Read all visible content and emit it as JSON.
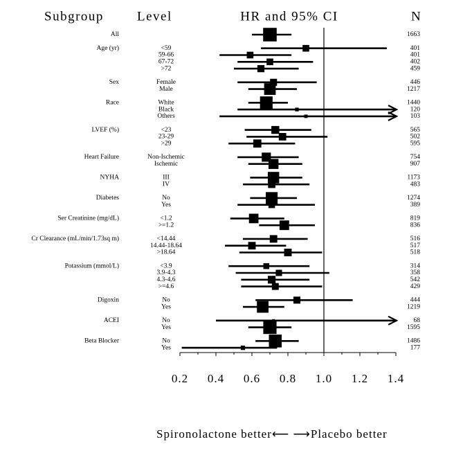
{
  "chart_data": {
    "type": "forest",
    "headers": {
      "subgroup": "Subgroup",
      "level": "Level",
      "estimate": "HR and 95% CI",
      "n": "N"
    },
    "x_label": "Spironolactone better⟵  ⟶Placebo better",
    "xlim": [
      0.2,
      1.4
    ],
    "xticks": [
      0.2,
      0.4,
      0.6,
      0.8,
      {
        "value": 1,
        "label": "1.0"
      },
      1.2,
      1.4
    ],
    "reference_line": 1,
    "color": "#000000",
    "groups": [
      {
        "name": "All",
        "rows": [
          {
            "hr": 0.7,
            "lo": 0.6,
            "hi": 0.82,
            "n": 1663
          }
        ]
      },
      {
        "name": "Age (yr)",
        "rows": [
          {
            "level": "<59",
            "hr": 0.9,
            "lo": 0.65,
            "hi": 1.35,
            "n": 401
          },
          {
            "level": "59-66",
            "hr": 0.59,
            "lo": 0.42,
            "hi": 0.82,
            "n": 401
          },
          {
            "level": "67-72",
            "hr": 0.7,
            "lo": 0.52,
            "hi": 0.94,
            "n": 402
          },
          {
            "level": ">72",
            "hr": 0.65,
            "lo": 0.5,
            "hi": 0.86,
            "n": 459
          }
        ]
      },
      {
        "name": "Sex",
        "rows": [
          {
            "level": "Female",
            "hr": 0.72,
            "lo": 0.52,
            "hi": 0.96,
            "n": 446
          },
          {
            "level": "Male",
            "hr": 0.7,
            "lo": 0.58,
            "hi": 0.85,
            "n": 1217
          }
        ]
      },
      {
        "name": "Race",
        "rows": [
          {
            "level": "White",
            "hr": 0.68,
            "lo": 0.58,
            "hi": 0.8,
            "n": 1440
          },
          {
            "level": "Black",
            "hr": 0.85,
            "lo": 0.52,
            "hi": 1.5,
            "n": 120
          },
          {
            "level": "Others",
            "hr": 0.9,
            "lo": 0.42,
            "hi": 1.5,
            "n": 103
          }
        ]
      },
      {
        "name": "LVEF (%)",
        "rows": [
          {
            "level": "<23",
            "hr": 0.73,
            "lo": 0.56,
            "hi": 0.93,
            "n": 565
          },
          {
            "level": "23-29",
            "hr": 0.77,
            "lo": 0.57,
            "hi": 1.02,
            "n": 502
          },
          {
            "level": ">29",
            "hr": 0.63,
            "lo": 0.47,
            "hi": 0.84,
            "n": 595
          }
        ]
      },
      {
        "name": "Heart Failure",
        "rows": [
          {
            "level": "Non-Ischemic",
            "hr": 0.68,
            "lo": 0.52,
            "hi": 0.86,
            "n": 754
          },
          {
            "level": "Ischemic",
            "hr": 0.72,
            "lo": 0.58,
            "hi": 0.88,
            "n": 907
          }
        ]
      },
      {
        "name": "NYHA",
        "rows": [
          {
            "level": "III",
            "hr": 0.72,
            "lo": 0.59,
            "hi": 0.88,
            "n": 1173
          },
          {
            "level": "IV",
            "hr": 0.71,
            "lo": 0.55,
            "hi": 0.92,
            "n": 483
          }
        ]
      },
      {
        "name": "Diabetes",
        "rows": [
          {
            "level": "No",
            "hr": 0.71,
            "lo": 0.59,
            "hi": 0.85,
            "n": 1274
          },
          {
            "level": "Yes",
            "hr": 0.71,
            "lo": 0.52,
            "hi": 0.95,
            "n": 389
          }
        ]
      },
      {
        "name": "Ser Creatinine (mg/dL)",
        "rows": [
          {
            "level": "<1.2",
            "hr": 0.61,
            "lo": 0.48,
            "hi": 0.78,
            "n": 819
          },
          {
            "level": ">=1.2",
            "hr": 0.78,
            "lo": 0.64,
            "hi": 0.95,
            "n": 836
          }
        ]
      },
      {
        "name": "Cr Clearance (mL/min/1.73sq m)",
        "rows": [
          {
            "level": "<14.44",
            "hr": 0.72,
            "lo": 0.55,
            "hi": 0.91,
            "n": 516
          },
          {
            "level": "14.44-18.64",
            "hr": 0.6,
            "lo": 0.45,
            "hi": 0.79,
            "n": 517
          },
          {
            "level": ">18.64",
            "hr": 0.8,
            "lo": 0.53,
            "hi": 0.99,
            "n": 518
          }
        ]
      },
      {
        "name": "Potassium (mmol/L)",
        "rows": [
          {
            "level": "<3.9",
            "hr": 0.68,
            "lo": 0.47,
            "hi": 0.92,
            "n": 314
          },
          {
            "level": "3.9-4.3",
            "hr": 0.75,
            "lo": 0.51,
            "hi": 1.03,
            "n": 358
          },
          {
            "level": "4.3-4.6",
            "hr": 0.71,
            "lo": 0.54,
            "hi": 0.92,
            "n": 542
          },
          {
            "level": ">=4.6",
            "hr": 0.73,
            "lo": 0.54,
            "hi": 0.99,
            "n": 429
          }
        ]
      },
      {
        "name": "Digoxin",
        "rows": [
          {
            "level": "No",
            "hr": 0.85,
            "lo": 0.62,
            "hi": 1.16,
            "n": 444
          },
          {
            "level": "Yes",
            "hr": 0.66,
            "lo": 0.55,
            "hi": 0.78,
            "n": 1219
          }
        ]
      },
      {
        "name": "ACEI",
        "rows": [
          {
            "level": "No",
            "hr": 0.72,
            "lo": 0.4,
            "hi": 1.5,
            "n": 68
          },
          {
            "level": "Yes",
            "hr": 0.7,
            "lo": 0.58,
            "hi": 0.82,
            "n": 1595
          }
        ]
      },
      {
        "name": "Beta Blocker",
        "rows": [
          {
            "level": "No",
            "hr": 0.73,
            "lo": 0.62,
            "hi": 0.86,
            "n": 1486
          },
          {
            "level": "Yes",
            "hr": 0.55,
            "lo": 0.21,
            "hi": 0.74,
            "n": 177
          }
        ]
      }
    ]
  }
}
